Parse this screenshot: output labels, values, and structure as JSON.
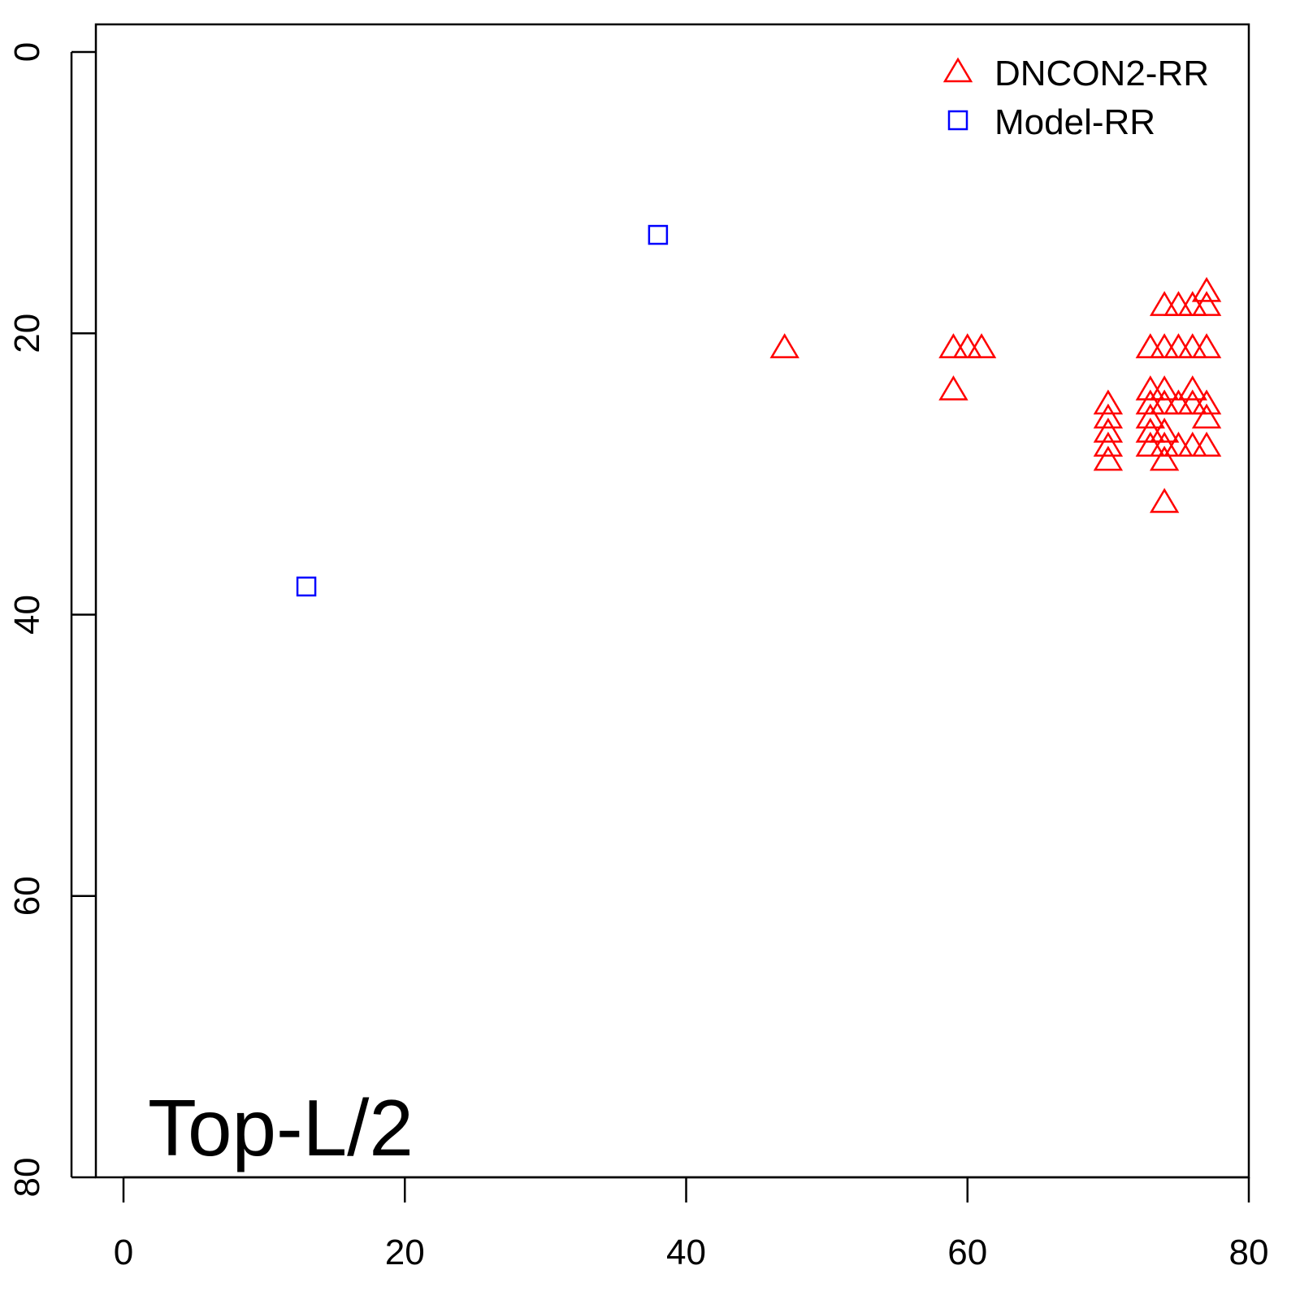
{
  "chart_data": {
    "type": "scatter",
    "title": "",
    "annotation": "Top-L/2",
    "xlabel": "",
    "ylabel": "",
    "xlim": [
      0,
      80
    ],
    "ylim": [
      0,
      80
    ],
    "y_reversed": true,
    "x_ticks": [
      "0",
      "20",
      "40",
      "60",
      "80"
    ],
    "y_ticks": [
      "0",
      "20",
      "40",
      "60",
      "80"
    ],
    "grid": false,
    "legend_position": "top-right",
    "series": [
      {
        "name": "DNCON2-RR",
        "color": "#ff0000",
        "marker": "triangle",
        "points": [
          [
            47,
            21
          ],
          [
            59,
            21
          ],
          [
            60,
            21
          ],
          [
            61,
            21
          ],
          [
            59,
            24
          ],
          [
            77,
            17
          ],
          [
            74,
            18
          ],
          [
            75,
            18
          ],
          [
            76,
            18
          ],
          [
            77,
            18
          ],
          [
            73,
            21
          ],
          [
            74,
            21
          ],
          [
            75,
            21
          ],
          [
            76,
            21
          ],
          [
            77,
            21
          ],
          [
            73,
            24
          ],
          [
            74,
            24
          ],
          [
            76,
            24
          ],
          [
            70,
            25
          ],
          [
            73,
            25
          ],
          [
            74,
            25
          ],
          [
            75,
            25
          ],
          [
            76,
            25
          ],
          [
            77,
            25
          ],
          [
            70,
            26
          ],
          [
            73,
            26
          ],
          [
            77,
            26
          ],
          [
            70,
            27
          ],
          [
            73,
            27
          ],
          [
            74,
            27
          ],
          [
            70,
            28
          ],
          [
            73,
            28
          ],
          [
            74,
            28
          ],
          [
            75,
            28
          ],
          [
            76,
            28
          ],
          [
            77,
            28
          ],
          [
            70,
            29
          ],
          [
            74,
            29
          ],
          [
            74,
            32
          ]
        ]
      },
      {
        "name": "Model-RR",
        "color": "#0000ff",
        "marker": "square",
        "points": [
          [
            38,
            13
          ],
          [
            13,
            38
          ]
        ]
      }
    ]
  }
}
